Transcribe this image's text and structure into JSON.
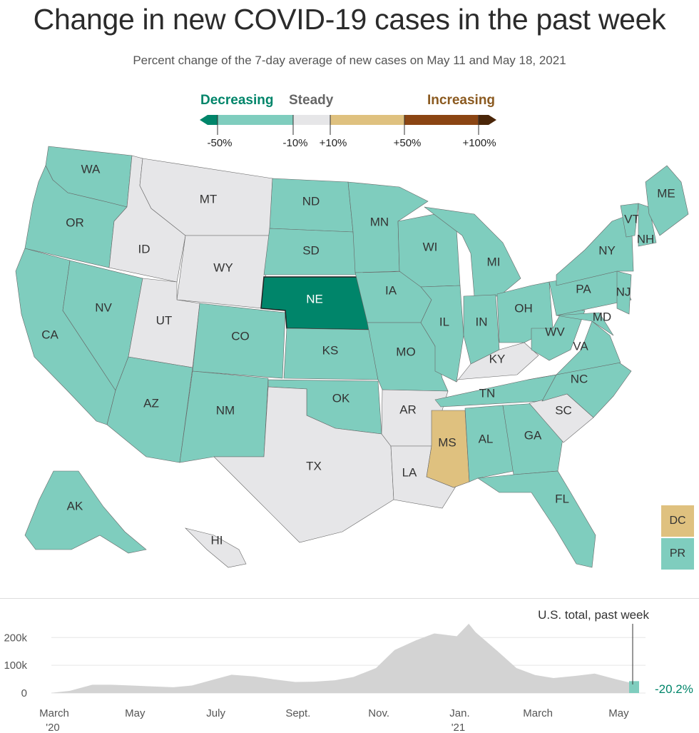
{
  "title": "Change in new COVID-19 cases in the past week",
  "subtitle": "Percent change of the 7-day average of new cases on May 11 and May 18, 2021",
  "legend": {
    "decreasing": "Decreasing",
    "steady": "Steady",
    "increasing": "Increasing",
    "ticks": [
      "-50%",
      "-10%",
      "+10%",
      "+50%",
      "+100%"
    ],
    "colors": {
      "strong_decrease": "#00856a",
      "decrease": "#7fcdbe",
      "steady": "#e6e6e8",
      "increase": "#dfc17f",
      "strong_increase": "#8b4513",
      "very_strong_increase": "#4a2508"
    }
  },
  "states": [
    {
      "abbr": "WA",
      "category": "decrease"
    },
    {
      "abbr": "OR",
      "category": "decrease"
    },
    {
      "abbr": "CA",
      "category": "decrease"
    },
    {
      "abbr": "NV",
      "category": "decrease"
    },
    {
      "abbr": "ID",
      "category": "steady"
    },
    {
      "abbr": "MT",
      "category": "steady"
    },
    {
      "abbr": "WY",
      "category": "steady"
    },
    {
      "abbr": "UT",
      "category": "steady"
    },
    {
      "abbr": "AZ",
      "category": "decrease"
    },
    {
      "abbr": "CO",
      "category": "decrease"
    },
    {
      "abbr": "NM",
      "category": "decrease"
    },
    {
      "abbr": "ND",
      "category": "decrease"
    },
    {
      "abbr": "SD",
      "category": "decrease"
    },
    {
      "abbr": "NE",
      "category": "strong_decrease"
    },
    {
      "abbr": "KS",
      "category": "decrease"
    },
    {
      "abbr": "OK",
      "category": "decrease"
    },
    {
      "abbr": "TX",
      "category": "steady"
    },
    {
      "abbr": "MN",
      "category": "decrease"
    },
    {
      "abbr": "IA",
      "category": "decrease"
    },
    {
      "abbr": "MO",
      "category": "decrease"
    },
    {
      "abbr": "AR",
      "category": "steady"
    },
    {
      "abbr": "LA",
      "category": "steady"
    },
    {
      "abbr": "WI",
      "category": "decrease"
    },
    {
      "abbr": "IL",
      "category": "decrease"
    },
    {
      "abbr": "MI",
      "category": "decrease"
    },
    {
      "abbr": "IN",
      "category": "decrease"
    },
    {
      "abbr": "OH",
      "category": "decrease"
    },
    {
      "abbr": "KY",
      "category": "steady"
    },
    {
      "abbr": "TN",
      "category": "decrease"
    },
    {
      "abbr": "MS",
      "category": "increase"
    },
    {
      "abbr": "AL",
      "category": "decrease"
    },
    {
      "abbr": "GA",
      "category": "decrease"
    },
    {
      "abbr": "FL",
      "category": "decrease"
    },
    {
      "abbr": "SC",
      "category": "steady"
    },
    {
      "abbr": "NC",
      "category": "decrease"
    },
    {
      "abbr": "VA",
      "category": "decrease"
    },
    {
      "abbr": "WV",
      "category": "decrease"
    },
    {
      "abbr": "PA",
      "category": "decrease"
    },
    {
      "abbr": "NY",
      "category": "decrease"
    },
    {
      "abbr": "MD",
      "category": "decrease"
    },
    {
      "abbr": "NJ",
      "category": "decrease"
    },
    {
      "abbr": "VT",
      "category": "decrease"
    },
    {
      "abbr": "NH",
      "category": "decrease"
    },
    {
      "abbr": "ME",
      "category": "decrease"
    },
    {
      "abbr": "AK",
      "category": "decrease"
    },
    {
      "abbr": "HI",
      "category": "steady"
    },
    {
      "abbr": "DC",
      "category": "increase"
    },
    {
      "abbr": "PR",
      "category": "decrease"
    }
  ],
  "timeline": {
    "label": "U.S. total, past week",
    "change_label": "-20.2%",
    "y_ticks": [
      "200k",
      "100k",
      "0"
    ],
    "months": [
      "March",
      "May",
      "July",
      "Sept.",
      "Nov.",
      "Jan.",
      "March",
      "May"
    ],
    "years": [
      "'20",
      "'21"
    ],
    "area_color": "#d3d3d3",
    "highlight_color": "#7fcdbe",
    "chart_data": {
      "type": "area",
      "x": [
        "2020-03-01",
        "2020-03-15",
        "2020-04-01",
        "2020-04-15",
        "2020-05-01",
        "2020-05-15",
        "2020-06-01",
        "2020-06-15",
        "2020-07-01",
        "2020-07-15",
        "2020-08-01",
        "2020-08-15",
        "2020-09-01",
        "2020-09-15",
        "2020-10-01",
        "2020-10-15",
        "2020-11-01",
        "2020-11-15",
        "2020-12-01",
        "2020-12-15",
        "2021-01-01",
        "2021-01-10",
        "2021-01-15",
        "2021-02-01",
        "2021-02-15",
        "2021-03-01",
        "2021-03-15",
        "2021-04-01",
        "2021-04-15",
        "2021-05-01",
        "2021-05-18"
      ],
      "values": [
        500,
        8000,
        30000,
        30000,
        27000,
        24000,
        21000,
        27000,
        48000,
        66000,
        60000,
        50000,
        40000,
        41000,
        46000,
        58000,
        90000,
        155000,
        190000,
        215000,
        205000,
        250000,
        220000,
        150000,
        90000,
        65000,
        54000,
        62000,
        70000,
        50000,
        30000
      ],
      "highlight": {
        "x_start": "2021-05-11",
        "x_end": "2021-05-18",
        "change": "-20.2%"
      },
      "ylim": [
        0,
        260000
      ],
      "ylabel": ""
    }
  }
}
